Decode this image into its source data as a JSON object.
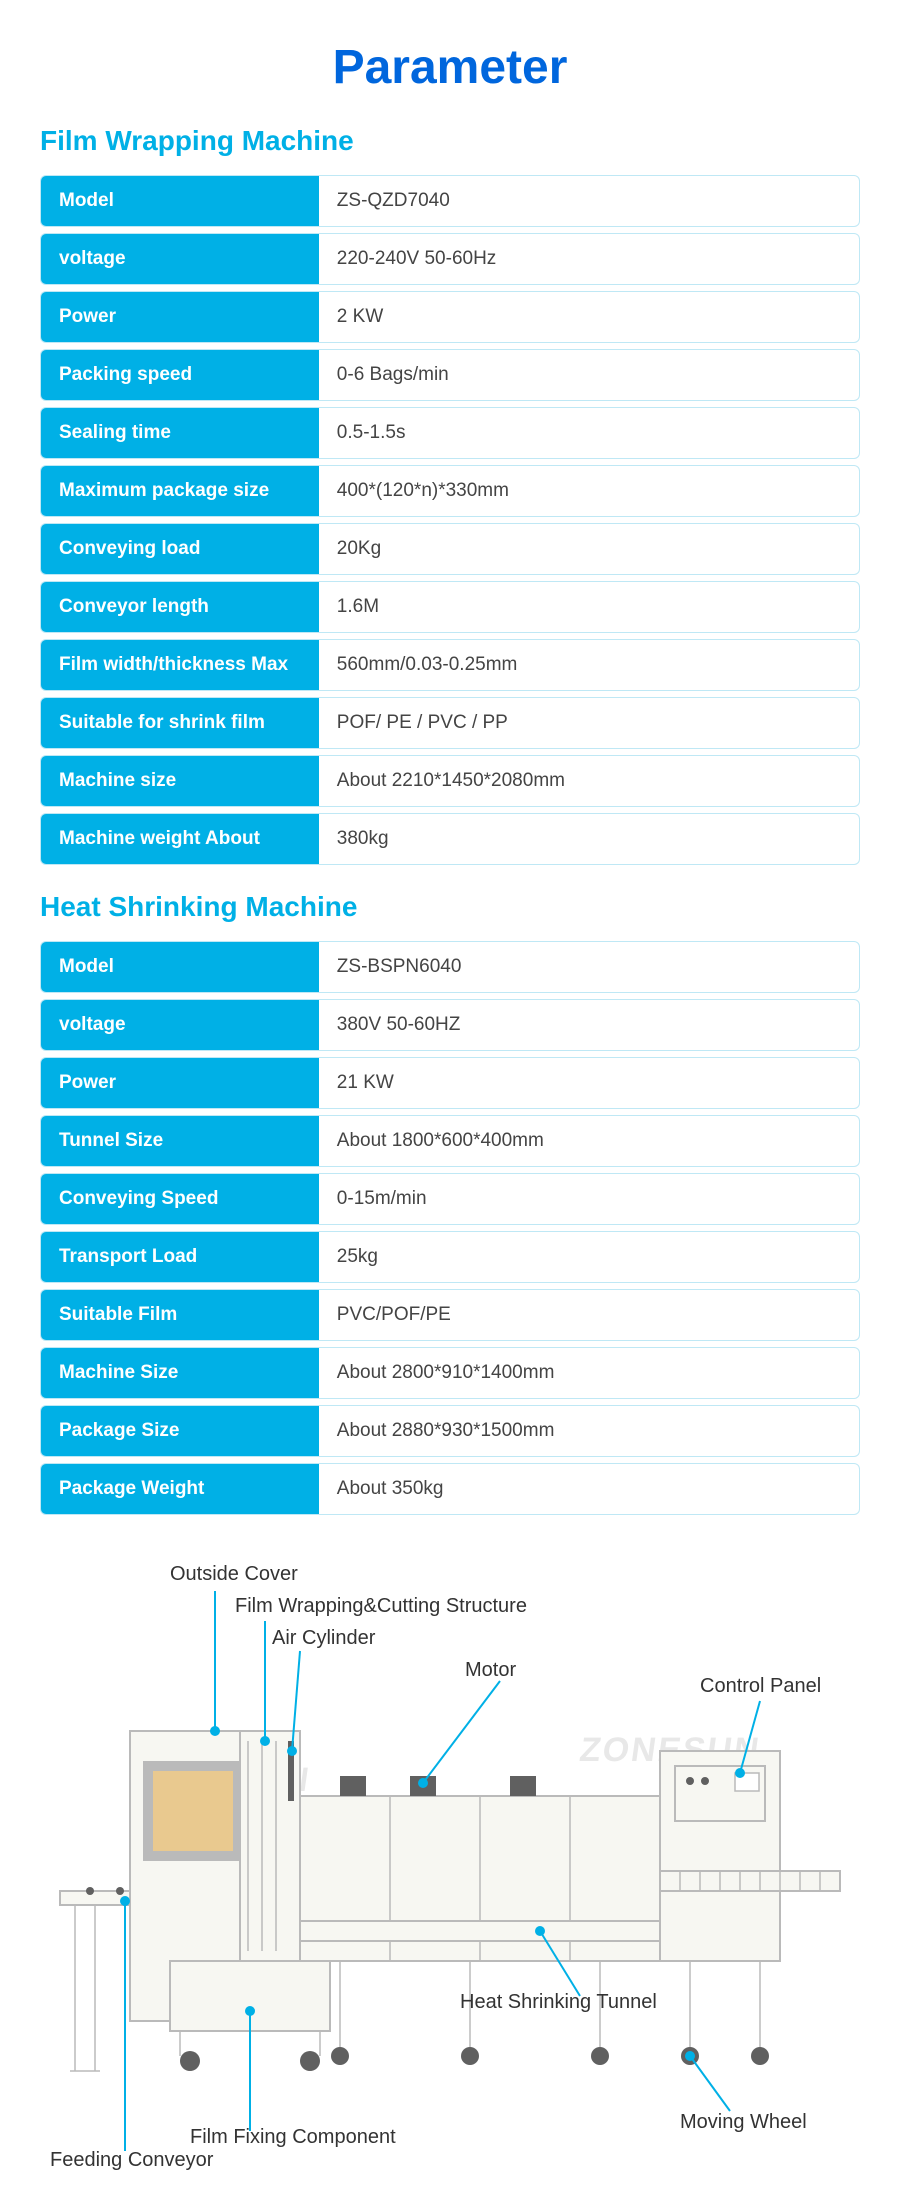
{
  "page_title": "Parameter",
  "section1_title": "Film Wrapping Machine",
  "section2_title": "Heat Shrinking Machine",
  "wrap": {
    "rows": [
      {
        "label": "Model",
        "value": "ZS-QZD7040"
      },
      {
        "label": "voltage",
        "value": "220-240V 50-60Hz"
      },
      {
        "label": "Power",
        "value": "2 KW"
      },
      {
        "label": "Packing speed",
        "value": "0-6 Bags/min"
      },
      {
        "label": "Sealing time",
        "value": "0.5-1.5s"
      },
      {
        "label": "Maximum package size",
        "value": "400*(120*n)*330mm"
      },
      {
        "label": "Conveying load",
        "value": "20Kg"
      },
      {
        "label": "Conveyor length",
        "value": "1.6M"
      },
      {
        "label": "Film width/thickness Max",
        "value": "560mm/0.03-0.25mm"
      },
      {
        "label": "Suitable for shrink film",
        "value": "POF/ PE / PVC / PP"
      },
      {
        "label": "Machine size",
        "value": "About 2210*1450*2080mm"
      },
      {
        "label": "Machine weight About",
        "value": "380kg"
      }
    ]
  },
  "heat": {
    "rows": [
      {
        "label": "Model",
        "value": "ZS-BSPN6040"
      },
      {
        "label": "voltage",
        "value": "380V 50-60HZ"
      },
      {
        "label": "Power",
        "value": "21 KW"
      },
      {
        "label": "Tunnel Size",
        "value": "About 1800*600*400mm"
      },
      {
        "label": "Conveying Speed",
        "value": "0-15m/min"
      },
      {
        "label": "Transport Load",
        "value": "25kg"
      },
      {
        "label": "Suitable Film",
        "value": "PVC/POF/PE"
      },
      {
        "label": "Machine Size",
        "value": "About 2800*910*1400mm"
      },
      {
        "label": "Package Size",
        "value": "About 2880*930*1500mm"
      },
      {
        "label": "Package Weight",
        "value": "About 350kg"
      }
    ]
  },
  "diagram": {
    "labels": {
      "outside_cover": "Outside Cover",
      "film_struct": "Film Wrapping&Cutting Structure",
      "air_cylinder": "Air Cylinder",
      "motor": "Motor",
      "control_panel": "Control Panel",
      "heat_tunnel": "Heat Shrinking Tunnel",
      "moving_wheel": "Moving Wheel",
      "film_fixing": "Film Fixing Component",
      "feeding_conveyor": "Feeding Conveyor"
    },
    "watermark": "ZONESUN"
  },
  "colors": {
    "title": "#0066dd",
    "accent": "#00b0e6",
    "row_border": "#bfe8f5",
    "text": "#333333",
    "machine_body": "#f7f7f2",
    "machine_stroke": "#bababa"
  }
}
